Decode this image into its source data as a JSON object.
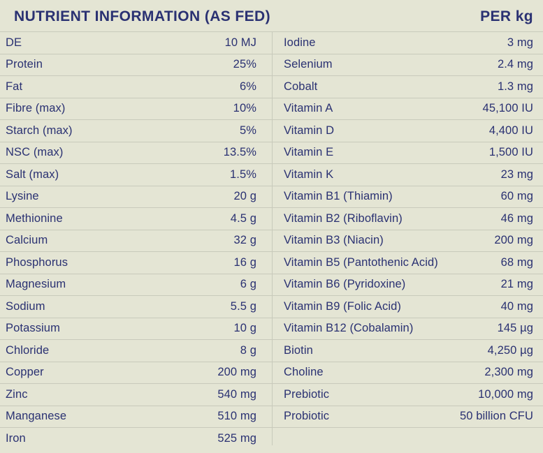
{
  "header": {
    "title": "NUTRIENT INFORMATION (AS FED)",
    "unit_label": "PER kg"
  },
  "colors": {
    "background": "#e4e5d4",
    "text": "#2a3172",
    "divider": "#c8cabb"
  },
  "table": {
    "left_rows": [
      {
        "label": "DE",
        "value": "10 MJ"
      },
      {
        "label": "Protein",
        "value": "25%"
      },
      {
        "label": "Fat",
        "value": "6%"
      },
      {
        "label": "Fibre (max)",
        "value": "10%"
      },
      {
        "label": "Starch (max)",
        "value": "5%"
      },
      {
        "label": "NSC (max)",
        "value": "13.5%"
      },
      {
        "label": "Salt (max)",
        "value": "1.5%"
      },
      {
        "label": "Lysine",
        "value": "20 g"
      },
      {
        "label": "Methionine",
        "value": "4.5 g"
      },
      {
        "label": "Calcium",
        "value": "32 g"
      },
      {
        "label": "Phosphorus",
        "value": "16 g"
      },
      {
        "label": "Magnesium",
        "value": "6 g"
      },
      {
        "label": "Sodium",
        "value": "5.5 g"
      },
      {
        "label": "Potassium",
        "value": "10 g"
      },
      {
        "label": "Chloride",
        "value": "8 g"
      },
      {
        "label": "Copper",
        "value": "200 mg"
      },
      {
        "label": "Zinc",
        "value": "540 mg"
      },
      {
        "label": "Manganese",
        "value": "510 mg"
      },
      {
        "label": "Iron",
        "value": "525 mg"
      }
    ],
    "right_rows": [
      {
        "label": "Iodine",
        "value": "3 mg"
      },
      {
        "label": "Selenium",
        "value": "2.4 mg"
      },
      {
        "label": "Cobalt",
        "value": "1.3 mg"
      },
      {
        "label": "Vitamin A",
        "value": "45,100 IU"
      },
      {
        "label": "Vitamin D",
        "value": "4,400 IU"
      },
      {
        "label": "Vitamin E",
        "value": "1,500 IU"
      },
      {
        "label": "Vitamin K",
        "value": "23 mg"
      },
      {
        "label": "Vitamin B1 (Thiamin)",
        "value": "60 mg"
      },
      {
        "label": "Vitamin B2 (Riboflavin)",
        "value": "46 mg"
      },
      {
        "label": "Vitamin B3 (Niacin)",
        "value": "200 mg"
      },
      {
        "label": "Vitamin B5 (Pantothenic Acid)",
        "value": "68 mg"
      },
      {
        "label": "Vitamin B6 (Pyridoxine)",
        "value": "21 mg"
      },
      {
        "label": "Vitamin B9 (Folic Acid)",
        "value": "40 mg"
      },
      {
        "label": "Vitamin B12 (Cobalamin)",
        "value": "145 µg"
      },
      {
        "label": "Biotin",
        "value": "4,250 µg"
      },
      {
        "label": "Choline",
        "value": "2,300 mg"
      },
      {
        "label": "Prebiotic",
        "value": "10,000 mg"
      },
      {
        "label": "Probiotic",
        "value": "50 billion CFU"
      }
    ]
  }
}
